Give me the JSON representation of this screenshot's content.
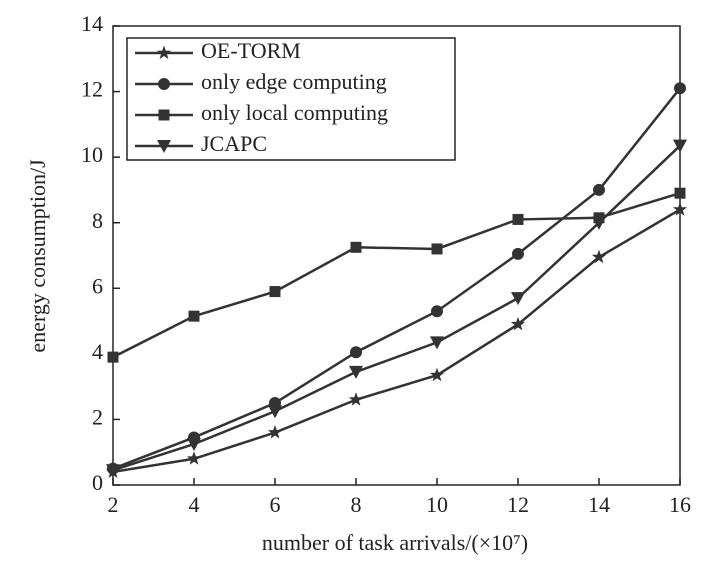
{
  "chart_data": {
    "type": "line",
    "x_label": "number of task arrivals/(×10⁷)",
    "y_label": "energy consumption/J",
    "x": [
      2,
      4,
      6,
      8,
      10,
      12,
      14,
      16
    ],
    "xlim": [
      2,
      16
    ],
    "xticks": [
      2,
      4,
      6,
      8,
      10,
      12,
      14,
      16
    ],
    "ylim": [
      0,
      14
    ],
    "yticks": [
      0,
      2,
      4,
      6,
      8,
      10,
      12,
      14
    ],
    "legend": "upper left",
    "series": [
      {
        "name": "OE-TORM",
        "color": "#333333",
        "marker": "star",
        "values": [
          0.4,
          0.8,
          1.6,
          2.6,
          3.35,
          4.9,
          6.95,
          8.4
        ]
      },
      {
        "name": "only edge computing",
        "color": "#333333",
        "marker": "circle",
        "values": [
          0.5,
          1.45,
          2.5,
          4.05,
          5.3,
          7.05,
          9.0,
          12.1
        ]
      },
      {
        "name": "only local computing",
        "color": "#333333",
        "marker": "square",
        "values": [
          3.9,
          5.15,
          5.9,
          7.25,
          7.2,
          8.1,
          8.15,
          8.9
        ]
      },
      {
        "name": "JCAPC",
        "color": "#333333",
        "marker": "triangle-down",
        "values": [
          0.45,
          1.25,
          2.25,
          3.45,
          4.35,
          5.7,
          8.0,
          10.35
        ]
      }
    ]
  }
}
